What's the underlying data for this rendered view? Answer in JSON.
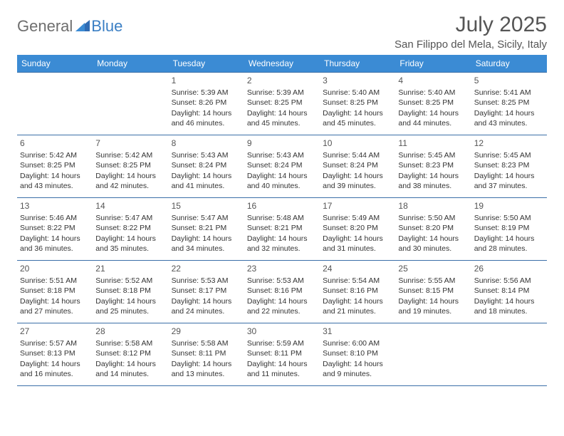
{
  "logo": {
    "part1": "General",
    "part2": "Blue",
    "color_gray": "#6e6e6e",
    "color_blue": "#3b7fc4",
    "tri_color": "#2f6bb3"
  },
  "header": {
    "month": "July 2025",
    "location": "San Filippo del Mela, Sicily, Italy"
  },
  "style": {
    "header_bg": "#3b8bd4",
    "header_fg": "#ffffff",
    "border_color": "#3b6fa8",
    "text_color": "#333333",
    "daynum_color": "#555555",
    "font_family": "Arial, Helvetica, sans-serif",
    "cell_fontsize": 10.5,
    "header_fontsize": 12,
    "month_fontsize": 30,
    "location_fontsize": 15
  },
  "dayHeaders": [
    "Sunday",
    "Monday",
    "Tuesday",
    "Wednesday",
    "Thursday",
    "Friday",
    "Saturday"
  ],
  "weeks": [
    [
      null,
      null,
      {
        "d": "1",
        "sr": "5:39 AM",
        "ss": "8:26 PM",
        "dl": "14 hours and 46 minutes."
      },
      {
        "d": "2",
        "sr": "5:39 AM",
        "ss": "8:25 PM",
        "dl": "14 hours and 45 minutes."
      },
      {
        "d": "3",
        "sr": "5:40 AM",
        "ss": "8:25 PM",
        "dl": "14 hours and 45 minutes."
      },
      {
        "d": "4",
        "sr": "5:40 AM",
        "ss": "8:25 PM",
        "dl": "14 hours and 44 minutes."
      },
      {
        "d": "5",
        "sr": "5:41 AM",
        "ss": "8:25 PM",
        "dl": "14 hours and 43 minutes."
      }
    ],
    [
      {
        "d": "6",
        "sr": "5:42 AM",
        "ss": "8:25 PM",
        "dl": "14 hours and 43 minutes."
      },
      {
        "d": "7",
        "sr": "5:42 AM",
        "ss": "8:25 PM",
        "dl": "14 hours and 42 minutes."
      },
      {
        "d": "8",
        "sr": "5:43 AM",
        "ss": "8:24 PM",
        "dl": "14 hours and 41 minutes."
      },
      {
        "d": "9",
        "sr": "5:43 AM",
        "ss": "8:24 PM",
        "dl": "14 hours and 40 minutes."
      },
      {
        "d": "10",
        "sr": "5:44 AM",
        "ss": "8:24 PM",
        "dl": "14 hours and 39 minutes."
      },
      {
        "d": "11",
        "sr": "5:45 AM",
        "ss": "8:23 PM",
        "dl": "14 hours and 38 minutes."
      },
      {
        "d": "12",
        "sr": "5:45 AM",
        "ss": "8:23 PM",
        "dl": "14 hours and 37 minutes."
      }
    ],
    [
      {
        "d": "13",
        "sr": "5:46 AM",
        "ss": "8:22 PM",
        "dl": "14 hours and 36 minutes."
      },
      {
        "d": "14",
        "sr": "5:47 AM",
        "ss": "8:22 PM",
        "dl": "14 hours and 35 minutes."
      },
      {
        "d": "15",
        "sr": "5:47 AM",
        "ss": "8:21 PM",
        "dl": "14 hours and 34 minutes."
      },
      {
        "d": "16",
        "sr": "5:48 AM",
        "ss": "8:21 PM",
        "dl": "14 hours and 32 minutes."
      },
      {
        "d": "17",
        "sr": "5:49 AM",
        "ss": "8:20 PM",
        "dl": "14 hours and 31 minutes."
      },
      {
        "d": "18",
        "sr": "5:50 AM",
        "ss": "8:20 PM",
        "dl": "14 hours and 30 minutes."
      },
      {
        "d": "19",
        "sr": "5:50 AM",
        "ss": "8:19 PM",
        "dl": "14 hours and 28 minutes."
      }
    ],
    [
      {
        "d": "20",
        "sr": "5:51 AM",
        "ss": "8:18 PM",
        "dl": "14 hours and 27 minutes."
      },
      {
        "d": "21",
        "sr": "5:52 AM",
        "ss": "8:18 PM",
        "dl": "14 hours and 25 minutes."
      },
      {
        "d": "22",
        "sr": "5:53 AM",
        "ss": "8:17 PM",
        "dl": "14 hours and 24 minutes."
      },
      {
        "d": "23",
        "sr": "5:53 AM",
        "ss": "8:16 PM",
        "dl": "14 hours and 22 minutes."
      },
      {
        "d": "24",
        "sr": "5:54 AM",
        "ss": "8:16 PM",
        "dl": "14 hours and 21 minutes."
      },
      {
        "d": "25",
        "sr": "5:55 AM",
        "ss": "8:15 PM",
        "dl": "14 hours and 19 minutes."
      },
      {
        "d": "26",
        "sr": "5:56 AM",
        "ss": "8:14 PM",
        "dl": "14 hours and 18 minutes."
      }
    ],
    [
      {
        "d": "27",
        "sr": "5:57 AM",
        "ss": "8:13 PM",
        "dl": "14 hours and 16 minutes."
      },
      {
        "d": "28",
        "sr": "5:58 AM",
        "ss": "8:12 PM",
        "dl": "14 hours and 14 minutes."
      },
      {
        "d": "29",
        "sr": "5:58 AM",
        "ss": "8:11 PM",
        "dl": "14 hours and 13 minutes."
      },
      {
        "d": "30",
        "sr": "5:59 AM",
        "ss": "8:11 PM",
        "dl": "14 hours and 11 minutes."
      },
      {
        "d": "31",
        "sr": "6:00 AM",
        "ss": "8:10 PM",
        "dl": "14 hours and 9 minutes."
      },
      null,
      null
    ]
  ],
  "labels": {
    "sunrise": "Sunrise:",
    "sunset": "Sunset:",
    "daylight": "Daylight:"
  }
}
